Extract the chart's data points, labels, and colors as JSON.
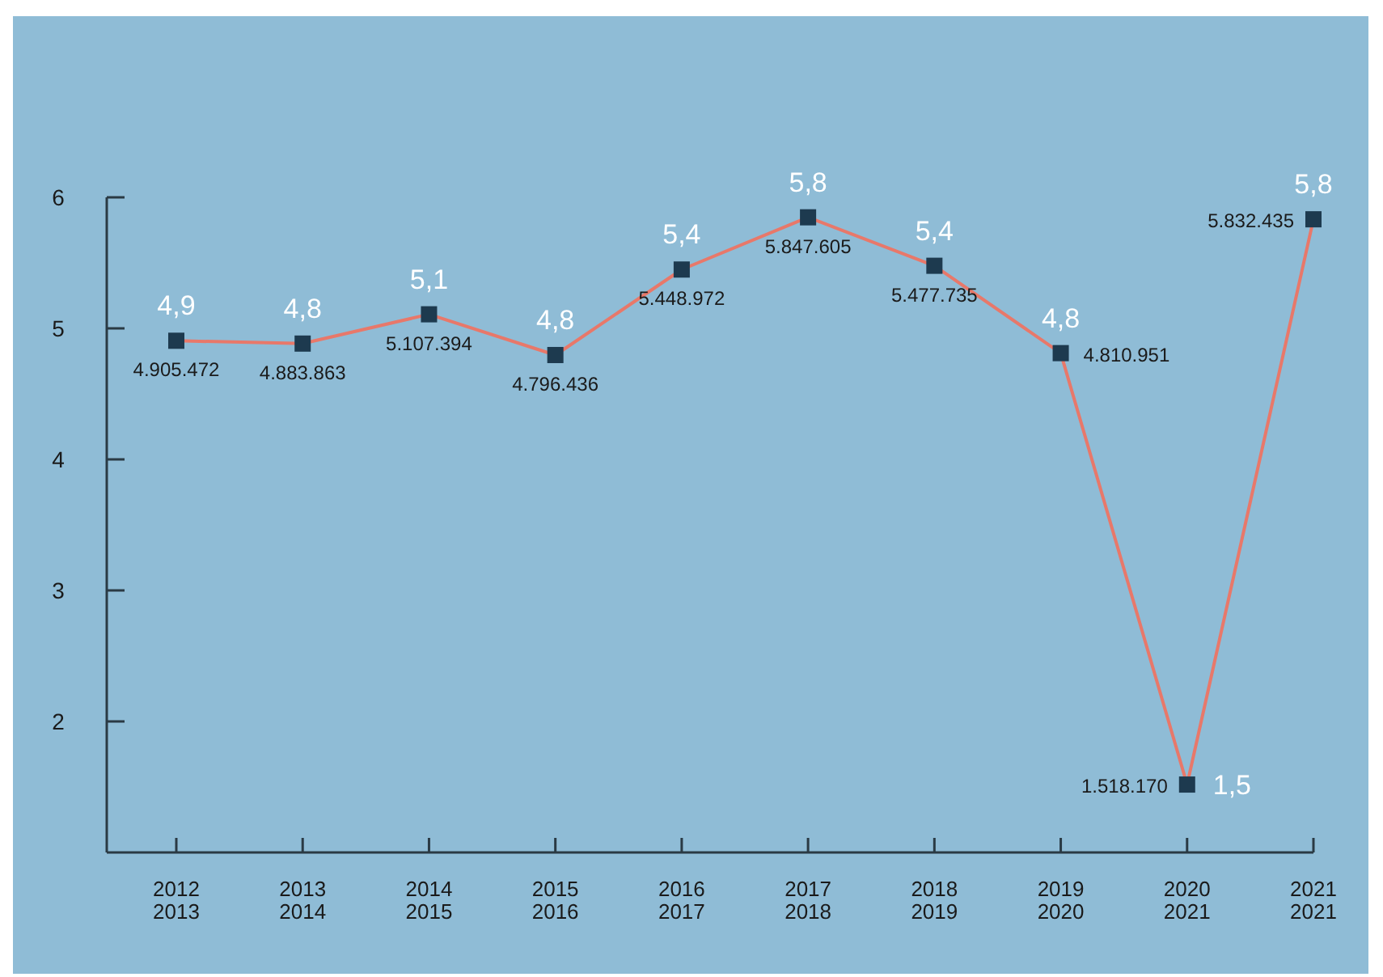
{
  "chart_data": {
    "type": "line",
    "categories": [
      "2012\n2013",
      "2013\n2014",
      "2014\n2015",
      "2015\n2016",
      "2016\n2017",
      "2017\n2018",
      "2018\n2019",
      "2019\n2020",
      "2020\n2021",
      "2021\n2021"
    ],
    "series": [
      {
        "color": "#e8786a",
        "values": [
          4.905472,
          4.883863,
          5.107394,
          4.796436,
          5.448972,
          5.847605,
          5.477735,
          4.810951,
          1.51817,
          5.832435
        ]
      }
    ],
    "ylim": [
      1,
      6
    ],
    "yticks": [
      2,
      3,
      4,
      5,
      6
    ],
    "marker": "square",
    "line_style": "solid",
    "annotations": [
      {
        "text": "4,9",
        "x": "2012\n2013",
        "y": 4.905472
      },
      {
        "text": "4,8",
        "x": "2013\n2014",
        "y": 4.883863
      },
      {
        "text": "5,1",
        "x": "2014\n2015",
        "y": 5.107394
      },
      {
        "text": "4,8",
        "x": "2015\n2016",
        "y": 4.796436
      },
      {
        "text": "5,4",
        "x": "2016\n2017",
        "y": 5.448972
      },
      {
        "text": "5,8",
        "x": "2017\n2018",
        "y": 5.847605
      },
      {
        "text": "5,4",
        "x": "2018\n2019",
        "y": 5.477735
      },
      {
        "text": "4,8",
        "x": "2019\n2020",
        "y": 4.810951
      },
      {
        "text": "1,5",
        "x": "2020\n2021",
        "y": 1.51817
      },
      {
        "text": "5,8",
        "x": "2021\n2021",
        "y": 5.832435
      },
      {
        "text": "4.905.472",
        "x": "2012\n2013",
        "y": 4.905472
      },
      {
        "text": "4.883.863",
        "x": "2013\n2014",
        "y": 4.883863
      },
      {
        "text": "5.107.394",
        "x": "2014\n2015",
        "y": 5.107394
      },
      {
        "text": "4.796.436",
        "x": "2015\n2016",
        "y": 4.796436
      },
      {
        "text": "5.448.972",
        "x": "2016\n2017",
        "y": 5.448972
      },
      {
        "text": "5.847.605",
        "x": "2017\n2018",
        "y": 5.847605
      },
      {
        "text": "5.477.735",
        "x": "2018\n2019",
        "y": 5.477735
      },
      {
        "text": "4.810.951",
        "x": "2019\n2020",
        "y": 4.810951
      },
      {
        "text": "1.518.170",
        "x": "2020\n2021",
        "y": 1.51817
      },
      {
        "text": "5.832.435",
        "x": "2021\n2021",
        "y": 5.832435
      }
    ]
  }
}
